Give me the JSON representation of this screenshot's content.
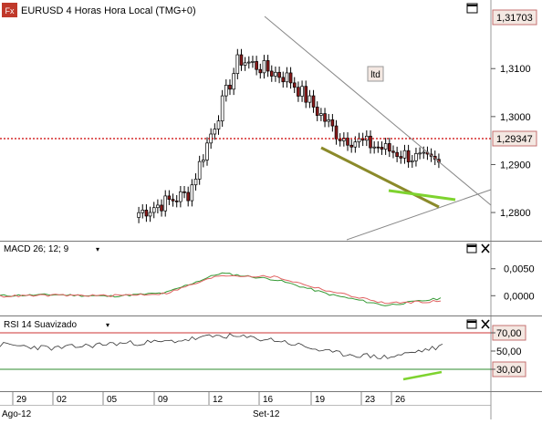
{
  "header": {
    "fx_badge": "Fx",
    "symbol_title": "EURUSD 4 Horas Hora Local (TMG+0)",
    "price_tags": {
      "top": "1,31703",
      "last": "1,29347"
    },
    "annotation": "ltd"
  },
  "macd": {
    "title": "MACD 26; 12; 9",
    "y_ticks": [
      "0,0050",
      "0,0000"
    ]
  },
  "rsi": {
    "title": "RSI 14 Suavizado",
    "y_ticks": [
      "70,00",
      "50,00",
      "30,00"
    ]
  },
  "time_axis": {
    "day_labels": [
      "29",
      "02",
      "05",
      "09",
      "12",
      "16",
      "19",
      "23",
      "26"
    ],
    "month_labels": [
      "Ago-12",
      "Set-12"
    ]
  },
  "colors": {
    "up": "#ffffff",
    "down": "#8b1a1a",
    "wick": "#000000",
    "price_line": "#cc0000",
    "macd_line": "#339933",
    "signal_line": "#e06060",
    "rsi_line": "#333333",
    "rsi_70": "#cc3333",
    "rsi_30": "#2e8b2e",
    "trend_olive": "#8b8a2a",
    "trend_green": "#7ed32f",
    "channel": "#888888",
    "tag_fill": "#f4e8e2",
    "tag_border": "#c47070"
  },
  "chart_data": [
    {
      "type": "line",
      "title": "EURUSD 4 Horas Hora Local (TMG+0)",
      "x": [
        "29",
        "02",
        "05",
        "09",
        "12",
        "16",
        "19",
        "23",
        "26"
      ],
      "series": [
        {
          "name": "EURUSD",
          "values": [
            1.2765,
            1.279,
            1.28,
            1.284,
            1.312,
            1.308,
            1.296,
            1.293,
            1.29
          ]
        }
      ],
      "ylim": [
        1.2745,
        1.3205
      ],
      "y_ticks": [
        1.28,
        1.29,
        1.3,
        1.31
      ],
      "last_price": 1.29347,
      "high_price": 1.31703,
      "grid": false
    },
    {
      "type": "line",
      "title": "MACD 26; 12; 9",
      "x": [
        "29",
        "02",
        "05",
        "09",
        "12",
        "16",
        "19",
        "23",
        "26"
      ],
      "series": [
        {
          "values": [
            0.0,
            0.0002,
            -0.0001,
            0.0005,
            0.0042,
            0.003,
            0.0002,
            -0.0018,
            -0.0005
          ]
        },
        {
          "values": [
            -0.0001,
            0.0001,
            0.0,
            0.0004,
            0.0038,
            0.0035,
            0.0008,
            -0.0014,
            -0.001
          ]
        }
      ],
      "ylim": [
        -0.0035,
        0.008
      ],
      "y_ticks": [
        0.0,
        0.005
      ]
    },
    {
      "type": "line",
      "title": "RSI 14 Suavizado",
      "x": [
        "29",
        "02",
        "05",
        "09",
        "12",
        "16",
        "19",
        "23",
        "26"
      ],
      "series": [
        {
          "values": [
            57,
            53,
            58,
            60,
            67,
            62,
            48,
            43,
            55
          ]
        }
      ],
      "ylim": [
        8,
        78
      ],
      "y_ticks": [
        30,
        50,
        70
      ]
    }
  ]
}
